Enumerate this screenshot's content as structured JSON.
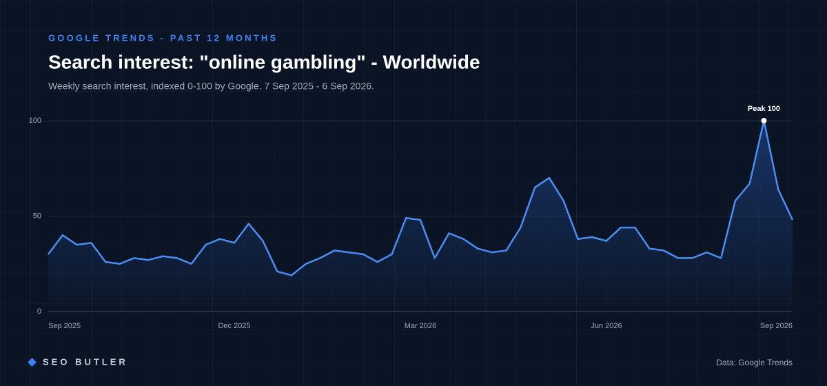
{
  "chart_data": {
    "type": "line",
    "supertitle": "GOOGLE TRENDS - PAST 12 MONTHS",
    "title": "Search interest: \"online gambling\" - Worldwide",
    "subtitle": "Weekly search interest, indexed 0-100 by Google. 7 Sep 2025 - 6 Sep 2026.",
    "values": [
      30,
      40,
      35,
      36,
      26,
      25,
      28,
      27,
      29,
      28,
      25,
      35,
      38,
      36,
      46,
      37,
      21,
      19,
      25,
      28,
      32,
      31,
      30,
      26,
      30,
      49,
      48,
      28,
      41,
      38,
      33,
      31,
      32,
      44,
      65,
      70,
      58,
      38,
      39,
      37,
      44,
      44,
      33,
      32,
      28,
      28,
      31,
      28,
      58,
      67,
      100,
      64,
      48
    ],
    "color": "#4a8ef5",
    "xlim": [
      0,
      52
    ],
    "xticks": [
      {
        "value": 0,
        "label": "Sep 2025"
      },
      {
        "value": 13,
        "label": "Dec 2025"
      },
      {
        "value": 26,
        "label": "Mar 2026"
      },
      {
        "value": 39,
        "label": "Jun 2026"
      },
      {
        "value": 52,
        "label": "Sep 2026"
      }
    ],
    "ylim": [
      0,
      100
    ],
    "yticks": [
      0,
      50,
      100
    ],
    "grid": true,
    "peak_label": "Peak 100",
    "brand": "SEO BUTLER",
    "source": "Data: Google Trends"
  }
}
